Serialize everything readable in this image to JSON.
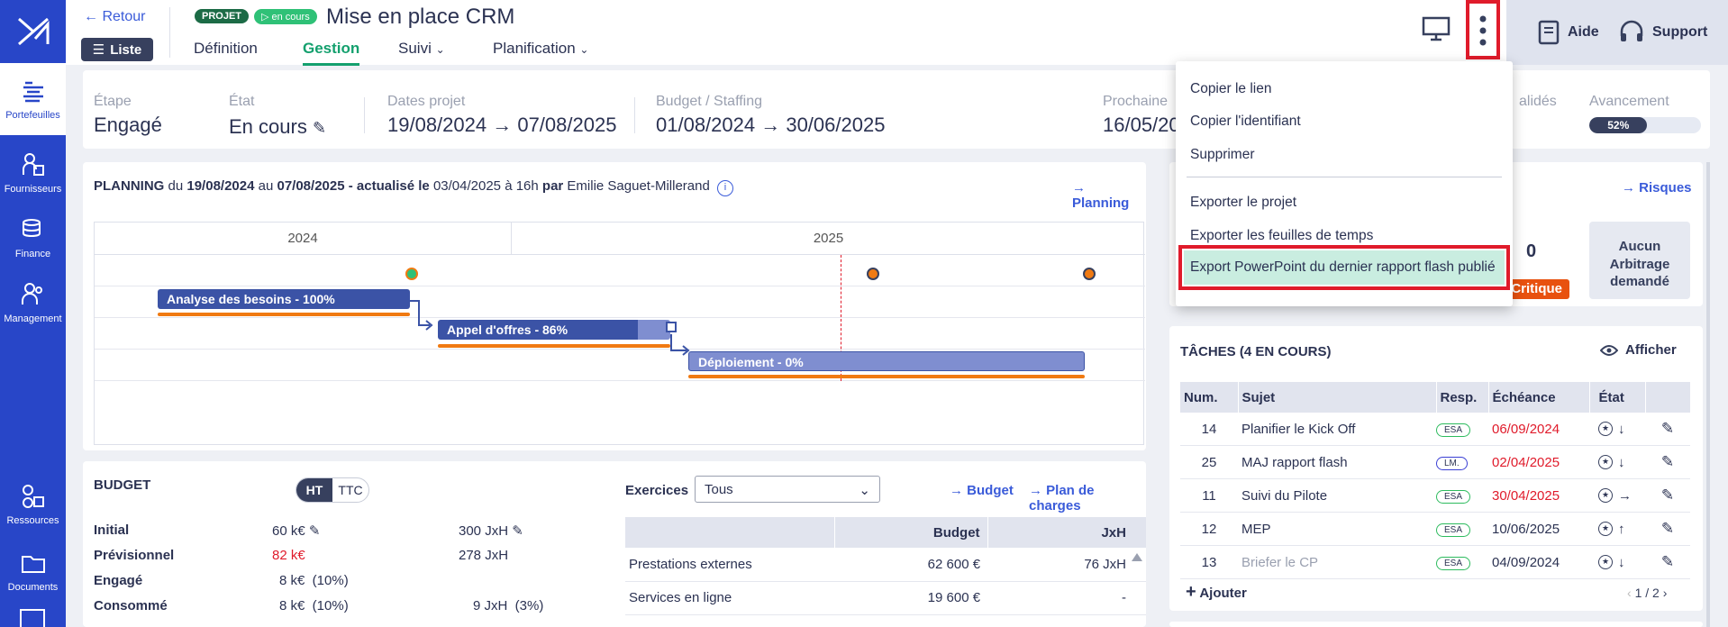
{
  "header": {
    "back_label": "Retour",
    "list_label": "Liste",
    "badge_project": "PROJET",
    "badge_status": "en cours",
    "title": "Mise en place CRM",
    "tabs": [
      {
        "label": "Définition"
      },
      {
        "label": "Gestion"
      },
      {
        "label": "Suivi"
      },
      {
        "label": "Planification"
      }
    ],
    "help_label": "Aide",
    "support_label": "Support"
  },
  "sidebar": {
    "items": [
      {
        "label": "Portefeuilles"
      },
      {
        "label": "Fournisseurs"
      },
      {
        "label": "Finance"
      },
      {
        "label": "Management"
      },
      {
        "label": "Ressources"
      },
      {
        "label": "Documents"
      }
    ]
  },
  "summary": {
    "etape_label": "Étape",
    "etape_value": "Engagé",
    "etat_label": "État",
    "etat_value": "En cours",
    "dates_label": "Dates projet",
    "dates_value": "19/08/2024 → 07/08/2025",
    "budget_label": "Budget / Staffing",
    "budget_value": "01/08/2024 → 30/06/2025",
    "prochaine_label": "Prochaine",
    "prochaine_value": "16/05/20",
    "valides_label": "alidés",
    "avancement_label": "Avancement",
    "avancement_value": "52%",
    "avancement_fraction": 0.52
  },
  "planning": {
    "title_prefix": "PLANNING",
    "du": "du",
    "start": "19/08/2024",
    "au": "au",
    "end": "07/08/2025",
    "actualise": "- actualisé le",
    "updated": "03/04/2025 à 16h",
    "par": "par",
    "author": "Emilie Saguet-Millerand",
    "link": "Planning",
    "years": [
      "2024",
      "2025"
    ],
    "bars": [
      {
        "label": "Analyse des besoins - 100%",
        "progress": 1.0
      },
      {
        "label": "Appel d'offres - 86%",
        "progress": 0.86
      },
      {
        "label": "Déploiement - 0%",
        "progress": 0.0
      }
    ]
  },
  "budget": {
    "title": "BUDGET",
    "toggle": [
      "HT",
      "TTC"
    ],
    "exercices_label": "Exercices",
    "exercices_value": "Tous",
    "link_budget": "Budget",
    "link_plan": "Plan de charges",
    "rows": [
      {
        "label": "Initial",
        "v1": "60 k€",
        "v2": "300 JxH"
      },
      {
        "label": "Prévisionnel",
        "v1": "82 k€",
        "v2": "278 JxH"
      },
      {
        "label": "Engagé",
        "v1": "8 k€  (10%)",
        "v2": ""
      },
      {
        "label": "Consommé",
        "v1": "8 k€  (10%)",
        "v2": "9 JxH  (3%)"
      }
    ],
    "table_headers": [
      "",
      "Budget",
      "JxH"
    ],
    "table_rows": [
      {
        "label": "Prestations externes",
        "budget": "62 600 €",
        "jxh": "76 JxH"
      },
      {
        "label": "Services en ligne",
        "budget": "19 600 €",
        "jxh": "-"
      }
    ]
  },
  "risks": {
    "link": "Risques",
    "count": "0",
    "critique": "Critique",
    "arbitrage": "Aucun Arbitrage demandé"
  },
  "tasks": {
    "title": "TÂCHES (4 EN COURS)",
    "show_label": "Afficher",
    "headers": [
      "Num.",
      "Sujet",
      "Resp.",
      "Échéance",
      "État"
    ],
    "rows": [
      {
        "num": "14",
        "subject": "Planifier le Kick Off",
        "resp": "ESA",
        "due": "06/09/2024",
        "late": true
      },
      {
        "num": "25",
        "subject": "MAJ rapport flash",
        "resp": "LM.",
        "due": "02/04/2025",
        "late": true
      },
      {
        "num": "11",
        "subject": "Suivi du Pilote",
        "resp": "ESA",
        "due": "30/04/2025",
        "late": true
      },
      {
        "num": "12",
        "subject": "MEP",
        "resp": "ESA",
        "due": "10/06/2025",
        "late": false
      },
      {
        "num": "13",
        "subject": "Briefer le CP",
        "resp": "ESA",
        "due": "04/09/2024",
        "late": false
      }
    ],
    "add_label": "Ajouter",
    "pagination": "1 / 2"
  },
  "menu": {
    "items": [
      "Copier le lien",
      "Copier l'identifiant",
      "Supprimer",
      "Exporter le projet",
      "Exporter les feuilles de temps",
      "Export PowerPoint du dernier rapport flash publié"
    ]
  },
  "colors": {
    "sidebar": "#2846c8",
    "accent_green": "#14a06e",
    "link_blue": "#3a5bd9",
    "danger": "#e01b2b",
    "gantt_bar": "#3b53a6",
    "gantt_bar_light": "#7f8ed0",
    "orange": "#f07a12"
  }
}
